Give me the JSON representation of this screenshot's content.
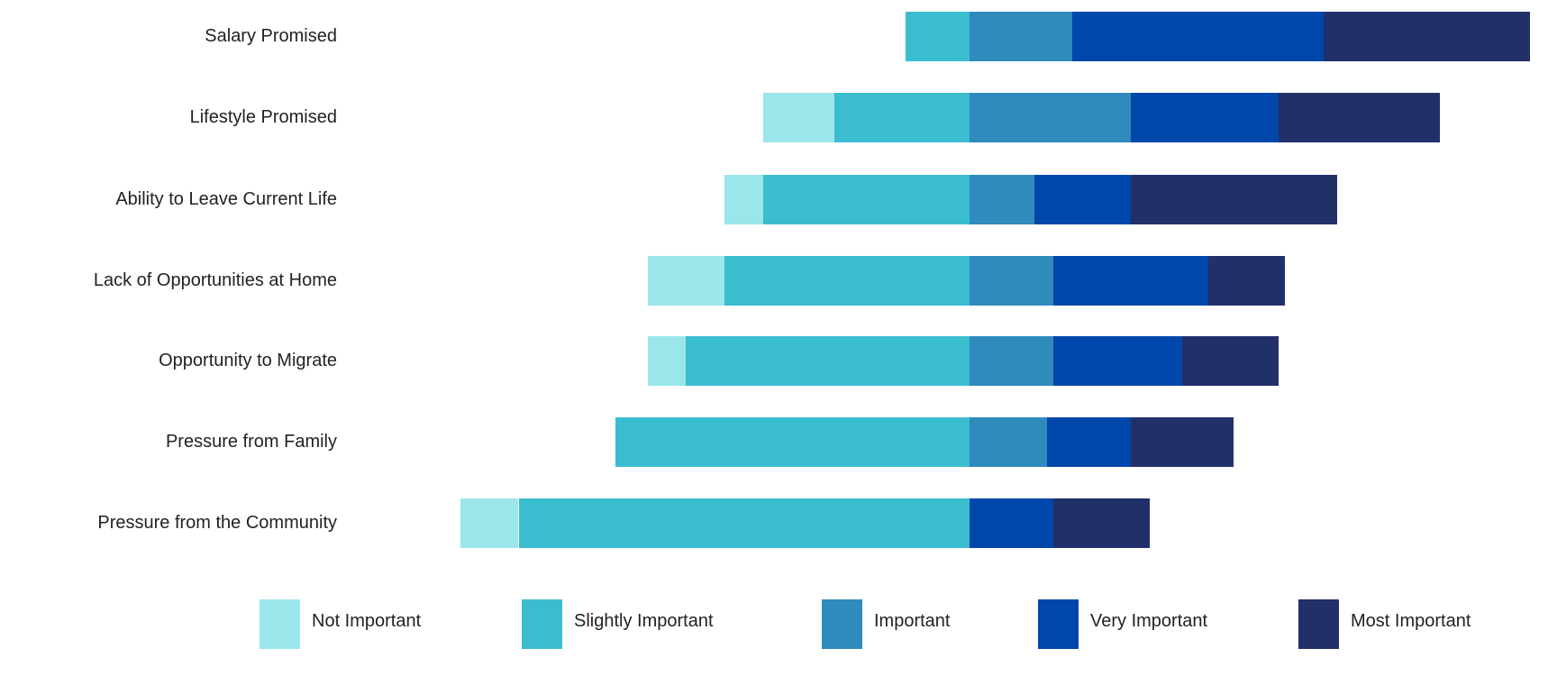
{
  "chart_data": {
    "type": "bar",
    "orientation": "horizontal",
    "stacked": "diverging",
    "title": "",
    "xlabel": "",
    "ylabel": "",
    "grid": false,
    "legend_position": "bottom",
    "categories": [
      "Salary Promised",
      "Lifestyle Promised",
      "Ability to Leave Current Life",
      "Lack of Opportunities at Home",
      "Opportunity to Migrate",
      "Pressure from Family",
      "Pressure from the Community"
    ],
    "series": [
      {
        "name": "Not Important",
        "color": "#9ae6ea",
        "side": "left",
        "values": [
          0,
          11,
          6,
          12,
          6,
          0,
          9
        ]
      },
      {
        "name": "Slightly Important",
        "color": "#3bbdd0",
        "side": "left",
        "values": [
          10,
          21,
          32,
          38,
          44,
          55,
          70
        ]
      },
      {
        "name": "Important",
        "color": "#2e8bbb",
        "side": "right",
        "values": [
          16,
          25,
          10,
          13,
          13,
          12,
          0
        ]
      },
      {
        "name": "Very Important",
        "color": "#0047ab",
        "side": "right",
        "values": [
          39,
          23,
          15,
          24,
          20,
          13,
          13
        ]
      },
      {
        "name": "Most Important",
        "color": "#22306a",
        "side": "right",
        "values": [
          32,
          25,
          32,
          12,
          15,
          16,
          15
        ]
      }
    ]
  }
}
